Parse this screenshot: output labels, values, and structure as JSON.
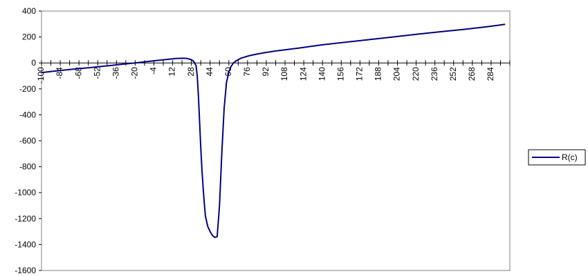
{
  "chart_data": {
    "type": "line",
    "title": "",
    "xlabel": "",
    "ylabel": "",
    "xlim": [
      -100,
      300
    ],
    "ylim": [
      -1600,
      400
    ],
    "y_ticks": [
      400,
      200,
      0,
      -200,
      -400,
      -600,
      -800,
      -1000,
      -1200,
      -1400,
      -1600
    ],
    "y_tick_labels": [
      "400",
      "200",
      "0",
      "-200",
      "-400",
      "-600",
      "-800",
      "-1000",
      "-1200",
      "-1400",
      "-1600"
    ],
    "x_tick_labels": [
      "-100",
      "-84",
      "-68",
      "-52",
      "-36",
      "-20",
      "-4",
      "12",
      "28",
      "44",
      "60",
      "76",
      "92",
      "108",
      "124",
      "140",
      "156",
      "172",
      "188",
      "204",
      "220",
      "236",
      "252",
      "268",
      "284"
    ],
    "grid": false,
    "legend": "right",
    "series": [
      {
        "name": "R(c)",
        "color": "#000080",
        "x": [
          -100,
          -90,
          -80,
          -70,
          -60,
          -50,
          -40,
          -30,
          -20,
          -10,
          0,
          10,
          15,
          20,
          24,
          28,
          30,
          32,
          33,
          34,
          35,
          36,
          37,
          38,
          39,
          40,
          42,
          44,
          46,
          48,
          50,
          52,
          54,
          56,
          58,
          60,
          62,
          64,
          66,
          68,
          70,
          74,
          78,
          84,
          90,
          100,
          120,
          140,
          160,
          180,
          200,
          220,
          240,
          260,
          280,
          296
        ],
        "y": [
          -75,
          -64,
          -55,
          -45,
          -37,
          -28,
          -19,
          -9,
          0,
          10,
          20,
          30,
          34,
          36,
          35,
          25,
          12,
          -20,
          -100,
          -250,
          -450,
          -650,
          -820,
          -960,
          -1080,
          -1180,
          -1260,
          -1300,
          -1330,
          -1345,
          -1340,
          -1100,
          -700,
          -350,
          -150,
          -70,
          -25,
          0,
          15,
          25,
          35,
          47,
          57,
          68,
          78,
          92,
          115,
          140,
          160,
          180,
          200,
          220,
          240,
          258,
          278,
          298
        ]
      }
    ]
  }
}
